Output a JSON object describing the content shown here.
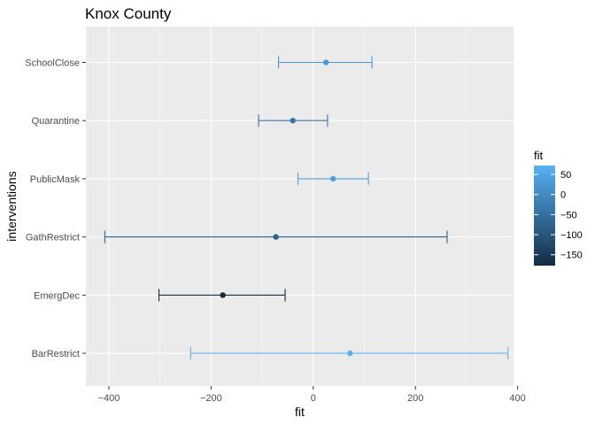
{
  "chart_data": {
    "type": "errorbar",
    "title": "Knox County",
    "xlabel": "fit",
    "ylabel": "interventions",
    "xlim": [
      -445,
      392
    ],
    "x_ticks": [
      -400,
      -200,
      0,
      200,
      400
    ],
    "grid": true,
    "categories": [
      "SchoolClose",
      "Quarantine",
      "PublicMask",
      "GathRestrict",
      "EmergDec",
      "BarRestrict"
    ],
    "fit": [
      25,
      -40,
      39,
      -73,
      -177,
      72
    ],
    "lower": [
      -68,
      -107,
      -30,
      -408,
      -302,
      -240
    ],
    "upper": [
      115,
      28,
      108,
      262,
      -55,
      381
    ],
    "legend": {
      "title": "fit",
      "position": "right",
      "ticks": [
        50,
        0,
        -50,
        -100,
        -150
      ],
      "color_min": {
        "value": -177,
        "color": "#132b43"
      },
      "color_max": {
        "value": 72,
        "color": "#56b1f7"
      }
    }
  }
}
